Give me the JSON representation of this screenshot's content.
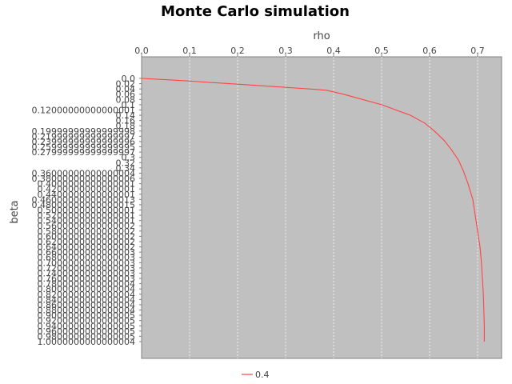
{
  "chart_data": {
    "type": "line",
    "title": "Monte Carlo simulation",
    "xlabel": "rho",
    "ylabel": "beta",
    "x_axis_position": "top",
    "y_axis_inverted": true,
    "grid": "vertical",
    "legend_position": "bottom",
    "plot_background": "#c0c0c0",
    "series_color": "#ff4444",
    "xlim": [
      0.0,
      0.75
    ],
    "ylim": [
      0.0,
      1.0
    ],
    "x_ticks": [
      "0.0",
      "0.1",
      "0.2",
      "0.3",
      "0.4",
      "0.5",
      "0.6",
      "0.7"
    ],
    "y_ticks": [
      "0.0",
      "0.02",
      "0.04",
      "0.06",
      "0.08",
      "0.1",
      "0.12000000000000001",
      "0.14",
      "0.16",
      "0.18",
      "0.19999999999999998",
      "0.21999999999999997",
      "0.23999999999999996",
      "0.25999999999999995",
      "0.27999999999999997",
      "0.3",
      "0.32",
      "0.34",
      "0.36000000000000004",
      "0.38000000000000006",
      "0.4000000000000001",
      "0.4200000000000001",
      "0.4400000000000001",
      "0.46000000000000013",
      "0.48000000000000015",
      "0.5000000000000001",
      "0.5200000000000001",
      "0.5400000000000001",
      "0.5600000000000002",
      "0.5800000000000002",
      "0.6000000000000002",
      "0.6200000000000002",
      "0.6400000000000002",
      "0.6600000000000003",
      "0.6800000000000003",
      "0.7000000000000003",
      "0.7200000000000003",
      "0.7400000000000003",
      "0.7600000000000003",
      "0.7800000000000004",
      "0.8000000000000004",
      "0.8200000000000004",
      "0.8400000000000004",
      "0.8600000000000004",
      "0.8800000000000004",
      "0.9000000000000005",
      "0.9200000000000005",
      "0.9400000000000005",
      "0.9600000000000005",
      "0.9800000000000005",
      "1.0000000000000004"
    ],
    "series": [
      {
        "name": "0.4",
        "x": [
          0.0,
          0.05,
          0.1,
          0.15,
          0.2,
          0.25,
          0.3,
          0.35,
          0.385,
          0.42,
          0.46,
          0.5,
          0.53,
          0.56,
          0.59,
          0.61,
          0.63,
          0.645,
          0.66,
          0.67,
          0.68,
          0.69,
          0.695,
          0.7,
          0.705,
          0.708,
          0.71,
          0.712,
          0.713,
          0.714,
          0.714
        ],
        "y": [
          0.0,
          0.005,
          0.01,
          0.016,
          0.022,
          0.028,
          0.034,
          0.04,
          0.045,
          0.06,
          0.08,
          0.1,
          0.12,
          0.14,
          0.17,
          0.2,
          0.235,
          0.27,
          0.31,
          0.35,
          0.4,
          0.46,
          0.52,
          0.58,
          0.64,
          0.7,
          0.76,
          0.82,
          0.88,
          0.94,
          1.0
        ]
      }
    ]
  }
}
